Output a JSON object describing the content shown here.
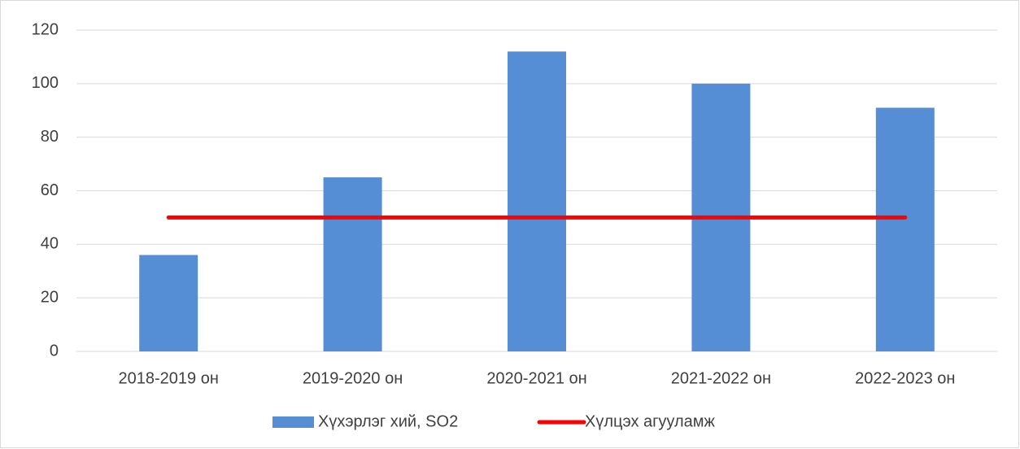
{
  "chart_data": {
    "type": "bar",
    "categories": [
      "2018-2019 он",
      "2019-2020 он",
      "2020-2021 он",
      "2021-2022 он",
      "2022-2023 он"
    ],
    "series": [
      {
        "name": "Хүхэрлэг хий, SO2",
        "type": "bar",
        "color": "#558ed5",
        "values": [
          36,
          65,
          112,
          100,
          91
        ]
      },
      {
        "name": "Хүлцэх агууламж",
        "type": "line",
        "color": "#ff0000",
        "values": [
          50,
          50,
          50,
          50,
          50
        ]
      }
    ],
    "ylim": [
      0,
      120
    ],
    "yticks": [
      0,
      20,
      40,
      60,
      80,
      100,
      120
    ],
    "grid": true,
    "legend": "bottom"
  }
}
